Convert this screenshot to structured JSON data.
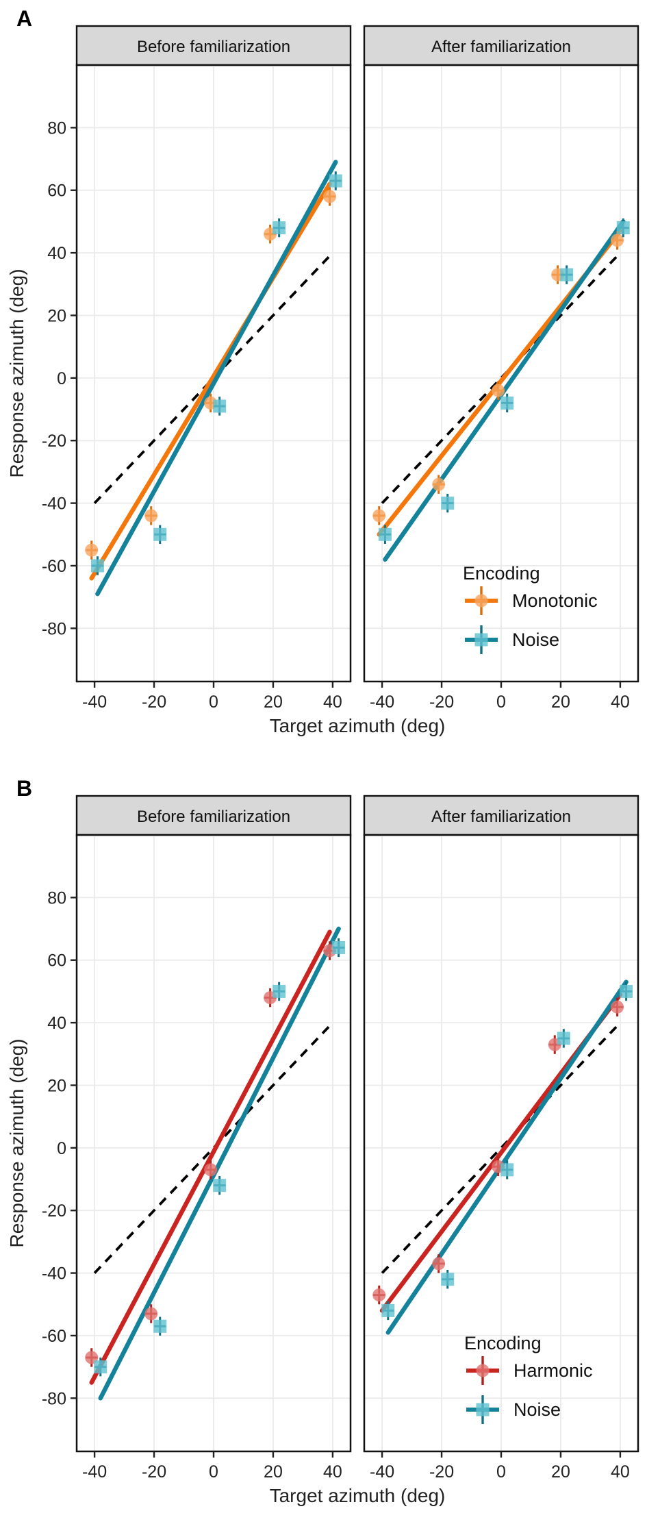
{
  "style": {
    "grid_color": "#EAEAEA",
    "strip_bg": "#D8D8D8",
    "border_color": "#111111",
    "identity_color": "#000000",
    "text_color": "#222222"
  },
  "chart_data": [
    {
      "type": "scatter",
      "panel_label": "A",
      "facets": [
        "Before familiarization",
        "After familiarization"
      ],
      "xlabel": "Target azimuth (deg)",
      "ylabel": "Response azimuth (deg)",
      "x_ticks": [
        -40,
        -20,
        0,
        20,
        40
      ],
      "y_ticks": [
        80,
        60,
        40,
        20,
        0,
        -20,
        -40,
        -60,
        -80
      ],
      "xlim": [
        -46,
        46
      ],
      "ylim": [
        -97,
        100
      ],
      "grid": true,
      "identity_line": [
        [
          -40,
          -40
        ],
        [
          40,
          40
        ]
      ],
      "legend": {
        "title": "Encoding",
        "position": "inside-right-facet"
      },
      "series": [
        {
          "name": "Monotonic",
          "marker": "circle",
          "line_color": "#F4770B",
          "fill_color": "#F8A55F",
          "err_color": "#DE6D08",
          "x_err": 2,
          "y_err": 3,
          "facet_points": [
            [
              [
                -41,
                -55
              ],
              [
                -21,
                -44
              ],
              [
                -1,
                -8
              ],
              [
                19,
                46
              ],
              [
                39,
                58
              ]
            ],
            [
              [
                -41,
                -44
              ],
              [
                -21,
                -34
              ],
              [
                -1,
                -4
              ],
              [
                19,
                33
              ],
              [
                39,
                44
              ]
            ]
          ],
          "fit_lines": [
            [
              [
                -41,
                -64
              ],
              [
                39,
                62
              ]
            ],
            [
              [
                -41,
                -50
              ],
              [
                40,
                47
              ]
            ]
          ]
        },
        {
          "name": "Noise",
          "marker": "square",
          "line_color": "#14829B",
          "fill_color": "#5FC0D0",
          "err_color": "#117185",
          "x_err": 2,
          "y_err": 3,
          "facet_points": [
            [
              [
                -39,
                -60
              ],
              [
                -18,
                -50
              ],
              [
                2,
                -9
              ],
              [
                22,
                48
              ],
              [
                41,
                63
              ]
            ],
            [
              [
                -39,
                -50
              ],
              [
                -18,
                -40
              ],
              [
                2,
                -8
              ],
              [
                22,
                33
              ],
              [
                41,
                48
              ]
            ]
          ],
          "fit_lines": [
            [
              [
                -39,
                -69
              ],
              [
                41,
                69
              ]
            ],
            [
              [
                -39,
                -58
              ],
              [
                41,
                50
              ]
            ]
          ]
        }
      ]
    },
    {
      "type": "scatter",
      "panel_label": "B",
      "facets": [
        "Before familiarization",
        "After familiarization"
      ],
      "xlabel": "Target azimuth (deg)",
      "ylabel": "Response azimuth (deg)",
      "x_ticks": [
        -40,
        -20,
        0,
        20,
        40
      ],
      "y_ticks": [
        80,
        60,
        40,
        20,
        0,
        -20,
        -40,
        -60,
        -80
      ],
      "xlim": [
        -46,
        46
      ],
      "ylim": [
        -97,
        100
      ],
      "grid": true,
      "identity_line": [
        [
          -40,
          -40
        ],
        [
          40,
          40
        ]
      ],
      "legend": {
        "title": "Encoding",
        "position": "inside-right-facet"
      },
      "series": [
        {
          "name": "Harmonic",
          "marker": "circle",
          "line_color": "#C9241F",
          "fill_color": "#E1736F",
          "err_color": "#B2201C",
          "x_err": 2,
          "y_err": 3,
          "facet_points": [
            [
              [
                -41,
                -67
              ],
              [
                -21,
                -53
              ],
              [
                -1,
                -7
              ],
              [
                19,
                48
              ],
              [
                39,
                63
              ]
            ],
            [
              [
                -41,
                -47
              ],
              [
                -21,
                -37
              ],
              [
                -1,
                -6
              ],
              [
                18,
                33
              ],
              [
                39,
                45
              ]
            ]
          ],
          "fit_lines": [
            [
              [
                -41,
                -75
              ],
              [
                39,
                69
              ]
            ],
            [
              [
                -40,
                -52
              ],
              [
                40,
                49
              ]
            ]
          ]
        },
        {
          "name": "Noise",
          "marker": "square",
          "line_color": "#14829B",
          "fill_color": "#5FC0D0",
          "err_color": "#117185",
          "x_err": 2,
          "y_err": 3,
          "facet_points": [
            [
              [
                -38,
                -70
              ],
              [
                -18,
                -57
              ],
              [
                2,
                -12
              ],
              [
                22,
                50
              ],
              [
                42,
                64
              ]
            ],
            [
              [
                -38,
                -52
              ],
              [
                -18,
                -42
              ],
              [
                2,
                -7
              ],
              [
                21,
                35
              ],
              [
                42,
                50
              ]
            ]
          ],
          "fit_lines": [
            [
              [
                -38,
                -80
              ],
              [
                42,
                70
              ]
            ],
            [
              [
                -38,
                -59
              ],
              [
                42,
                53
              ]
            ]
          ]
        }
      ]
    }
  ]
}
